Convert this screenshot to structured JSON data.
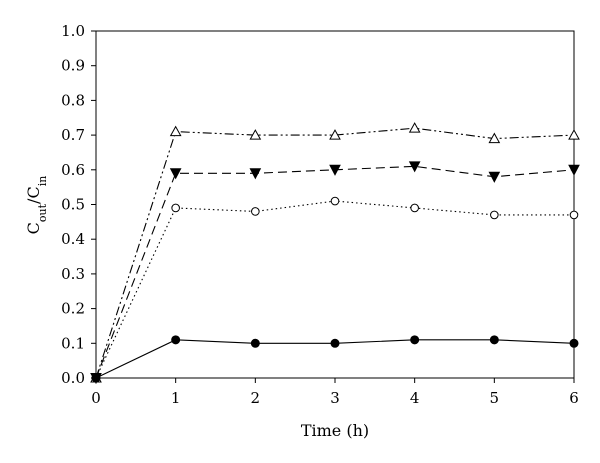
{
  "chart_data": {
    "type": "line",
    "title": "",
    "xlabel": "Time (h)",
    "ylabel": {
      "base1": "C",
      "sub1": "out",
      "sep": "/",
      "base2": "C",
      "sub2": "in"
    },
    "xlim": [
      0,
      6
    ],
    "ylim": [
      0,
      1.0
    ],
    "x_ticks": [
      "0",
      "1",
      "2",
      "3",
      "4",
      "5",
      "6"
    ],
    "y_ticks": [
      "0.0",
      "0.1",
      "0.2",
      "0.3",
      "0.4",
      "0.5",
      "0.6",
      "0.7",
      "0.8",
      "0.9",
      "1.0"
    ],
    "grid": false,
    "legend": "none",
    "x": [
      0,
      1,
      2,
      3,
      4,
      5,
      6
    ],
    "series": [
      {
        "marker": "open-triangle-up",
        "line_style": "dash-dot-dot",
        "values": [
          0.0,
          0.71,
          0.7,
          0.7,
          0.72,
          0.69,
          0.7
        ]
      },
      {
        "marker": "filled-triangle-down",
        "line_style": "dashed",
        "values": [
          0.0,
          0.59,
          0.59,
          0.6,
          0.61,
          0.58,
          0.6
        ]
      },
      {
        "marker": "open-circle",
        "line_style": "dotted",
        "values": [
          0.0,
          0.49,
          0.48,
          0.51,
          0.49,
          0.47,
          0.47
        ]
      },
      {
        "marker": "filled-circle",
        "line_style": "solid",
        "values": [
          0.0,
          0.11,
          0.1,
          0.1,
          0.11,
          0.11,
          0.1
        ]
      }
    ],
    "colors": {
      "ink": "#000000",
      "background": "#ffffff"
    }
  }
}
